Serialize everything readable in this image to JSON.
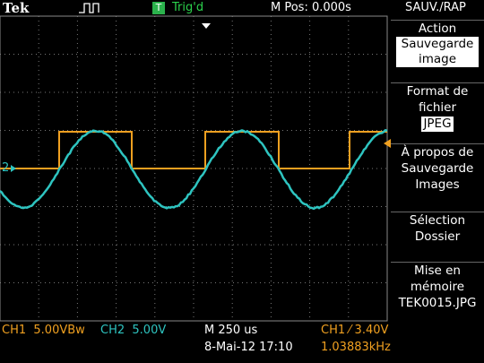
{
  "header": {
    "brand": "Tek",
    "trigger_badge": "T",
    "trigger_status": "Trig'd",
    "position": "M Pos: 0.000s",
    "menu_title": "SAUV./RAP"
  },
  "markers": {
    "ch2": "2"
  },
  "menu": {
    "items": [
      {
        "label": "Action",
        "value": "Sauvegarde image"
      },
      {
        "label": "Format de fichier",
        "value": "JPEG"
      },
      {
        "label": "À propos de Sauvegarde Images"
      },
      {
        "label": "Sélection Dossier"
      },
      {
        "label": "Mise en mémoire",
        "value": "TEK0015.JPG"
      }
    ]
  },
  "footer": {
    "ch1_scale": "CH1  5.00VBw",
    "ch2_scale": "CH2  5.00V",
    "timebase": "M 250 us",
    "trigger_level": "CH1 ⁄ 3.40V",
    "datetime": "8-Mai-12 17:10",
    "frequency": "1.03883kHz"
  }
}
